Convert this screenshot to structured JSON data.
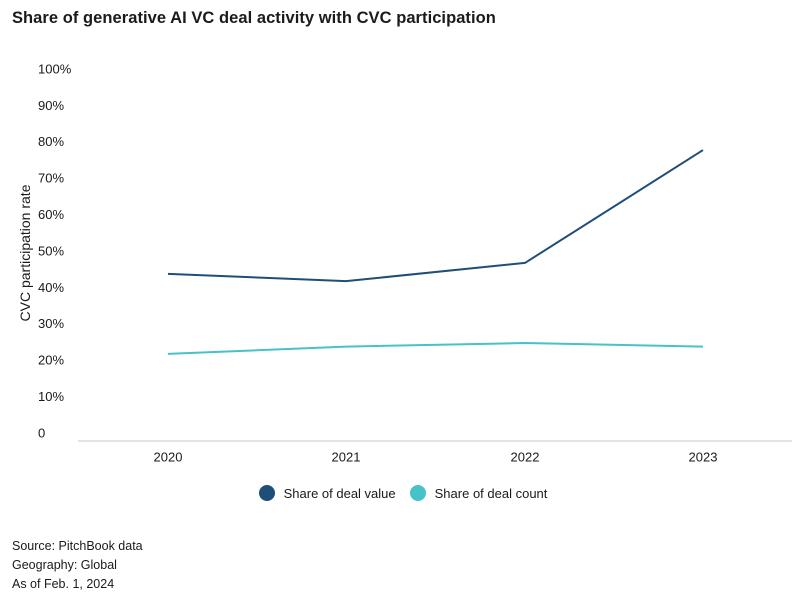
{
  "title": "Share of generative AI VC deal activity  with CVC participation",
  "chart_data": {
    "type": "line",
    "title": "Share of generative AI VC deal activity  with CVC participation",
    "xlabel": "",
    "ylabel": "CVC participation rate",
    "categories": [
      "2020",
      "2021",
      "2022",
      "2023"
    ],
    "ylim": [
      0,
      100
    ],
    "yticks": [
      0,
      10,
      20,
      30,
      40,
      50,
      60,
      70,
      80,
      90,
      100
    ],
    "ytick_labels": [
      "0",
      "10%",
      "20%",
      "30%",
      "40%",
      "50%",
      "60%",
      "70%",
      "80%",
      "90%",
      "100%"
    ],
    "grid": false,
    "legend_position": "bottom-center",
    "series": [
      {
        "name": "Share of deal value",
        "color": "#1f4e79",
        "values": [
          44,
          42,
          47,
          78
        ]
      },
      {
        "name": "Share of deal count",
        "color": "#46c2c8",
        "values": [
          22,
          24,
          25,
          24
        ]
      }
    ]
  },
  "notes": {
    "source": "Source: PitchBook data",
    "geography": "Geography: Global",
    "as_of": "As of Feb. 1, 2024"
  }
}
